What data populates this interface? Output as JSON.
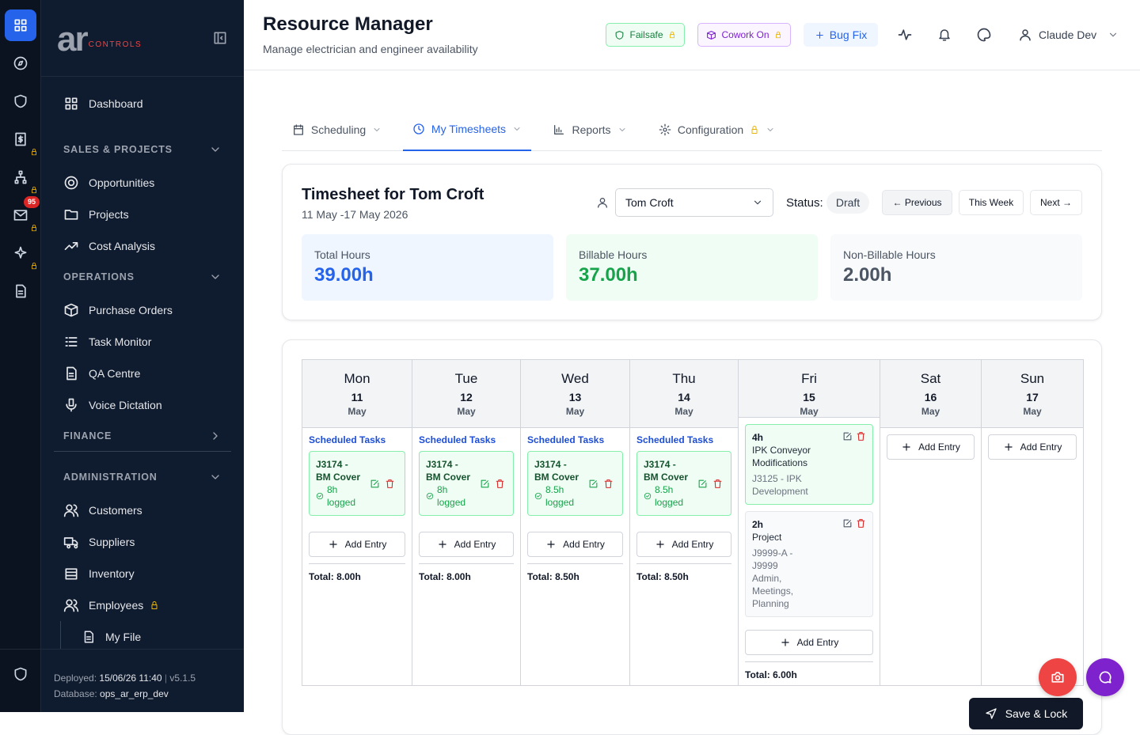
{
  "sidebar": {
    "badge": "95",
    "logo": {
      "main": "ar",
      "sub": "CONTROLS"
    },
    "dashboard": "Dashboard",
    "sections": [
      {
        "title": "SALES & PROJECTS",
        "collapsed": false,
        "items": [
          {
            "label": "Opportunities"
          },
          {
            "label": "Projects"
          },
          {
            "label": "Cost Analysis"
          }
        ]
      },
      {
        "title": "OPERATIONS",
        "collapsed": false,
        "items": [
          {
            "label": "Purchase Orders"
          },
          {
            "label": "Task Monitor"
          },
          {
            "label": "QA Centre"
          },
          {
            "label": "Voice Dictation"
          }
        ]
      },
      {
        "title": "FINANCE",
        "collapsed": true,
        "items": []
      },
      {
        "title": "ADMINISTRATION",
        "collapsed": false,
        "items": [
          {
            "label": "Customers"
          },
          {
            "label": "Suppliers"
          },
          {
            "label": "Inventory"
          },
          {
            "label": "Employees",
            "locked": true
          }
        ],
        "subitem": "My File"
      }
    ],
    "footer": {
      "deployed_label": "Deployed:",
      "deployed": "15/06/26 11:40",
      "separator": "|",
      "version": "v5.1.5",
      "database_label": "Database:",
      "database": "ops_ar_erp_dev"
    }
  },
  "header": {
    "title": "Resource Manager",
    "subtitle": "Manage electrician and engineer availability",
    "chips": [
      "Failsafe",
      "Cowork On",
      "Bug Fix"
    ],
    "user": "Claude Dev"
  },
  "tabs": {
    "items": [
      {
        "label": "Scheduling"
      },
      {
        "label": "My Timesheets"
      },
      {
        "label": "Reports"
      },
      {
        "label": "Configuration",
        "locked": true
      }
    ],
    "active": 1
  },
  "timesheet": {
    "title": "Timesheet for Tom Croft",
    "range": "11 May -17 May 2026",
    "employee": "Tom Croft",
    "status_label": "Status:",
    "status": "Draft",
    "buttons": [
      "← Previous",
      "This Week",
      "Next →"
    ],
    "stats": [
      {
        "label": "Total Hours",
        "value": "39.00h"
      },
      {
        "label": "Billable Hours",
        "value": "37.00h"
      },
      {
        "label": "Non-Billable Hours",
        "value": "2.00h"
      }
    ]
  },
  "week": {
    "scheduled_label": "Scheduled Tasks",
    "add_entry": "Add Entry",
    "save": "Save & Lock",
    "days": [
      {
        "name": "Mon",
        "date": "11",
        "month": "May",
        "tasks": [
          {
            "title": "J3174 - BM Cover",
            "logged": "8h logged"
          }
        ],
        "entries": [],
        "total": "Total: 8.00h"
      },
      {
        "name": "Tue",
        "date": "12",
        "month": "May",
        "tasks": [
          {
            "title": "J3174 - BM Cover",
            "logged": "8h logged"
          }
        ],
        "entries": [],
        "total": "Total: 8.00h"
      },
      {
        "name": "Wed",
        "date": "13",
        "month": "May",
        "tasks": [
          {
            "title": "J3174 - BM Cover",
            "logged": "8.5h logged"
          }
        ],
        "entries": [],
        "total": "Total: 8.50h"
      },
      {
        "name": "Thu",
        "date": "14",
        "month": "May",
        "tasks": [
          {
            "title": "J3174 - BM Cover",
            "logged": "8.5h logged"
          }
        ],
        "entries": [],
        "total": "Total: 8.50h"
      },
      {
        "name": "Fri",
        "date": "15",
        "month": "May",
        "tasks": [],
        "entries": [
          {
            "hours": "4h",
            "title": "IPK Conveyor Modifications",
            "job": "J3125 - IPK Development",
            "billable": true
          },
          {
            "hours": "2h",
            "title": "Project",
            "job": "J9999-A - J9999 Admin, Meetings, Planning",
            "billable": false
          }
        ],
        "total": "Total: 6.00h"
      },
      {
        "name": "Sat",
        "date": "16",
        "month": "May",
        "tasks": [],
        "entries": []
      },
      {
        "name": "Sun",
        "date": "17",
        "month": "May",
        "tasks": [],
        "entries": []
      }
    ]
  }
}
